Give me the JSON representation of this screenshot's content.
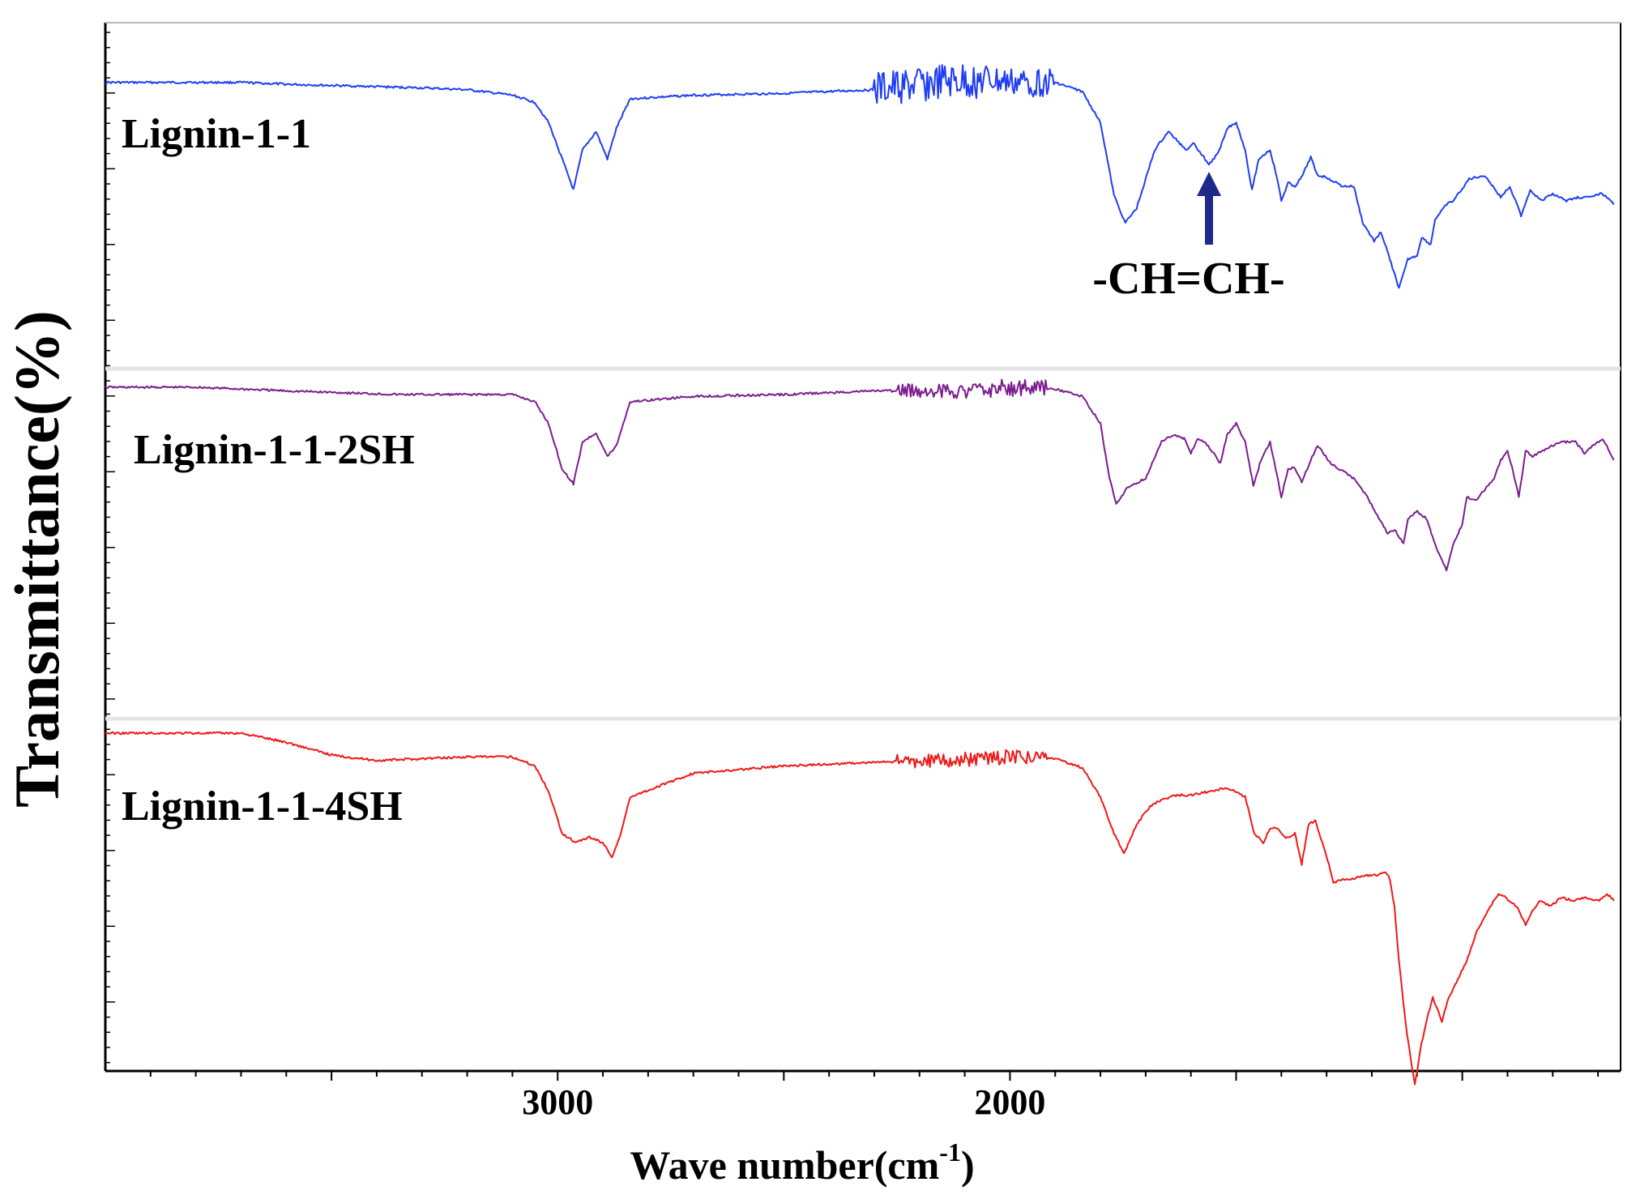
{
  "chart_data": {
    "type": "line",
    "title": "",
    "xlabel": "Wave number(cm",
    "xlabel_sup": "-1",
    "xlabel_close": ")",
    "ylabel": "Transmittance(%)",
    "xlim": [
      4000,
      650
    ],
    "x_ticks": [
      3000,
      2000
    ],
    "x_tick_labels": [
      "3000",
      "2000"
    ],
    "grid": false,
    "legend": "none",
    "annotation": {
      "text": "-CH=CH-",
      "x": 1560,
      "series": 0
    },
    "series": [
      {
        "name": "Lignin-1-1",
        "color": "#1f3df5",
        "points": [
          [
            4000,
            0.03
          ],
          [
            3900,
            0.03
          ],
          [
            3700,
            0.03
          ],
          [
            3600,
            0.04
          ],
          [
            3300,
            0.06
          ],
          [
            3200,
            0.07
          ],
          [
            3100,
            0.1
          ],
          [
            3050,
            0.14
          ],
          [
            3020,
            0.25
          ],
          [
            2990,
            0.45
          ],
          [
            2965,
            0.62
          ],
          [
            2945,
            0.4
          ],
          [
            2915,
            0.3
          ],
          [
            2890,
            0.45
          ],
          [
            2870,
            0.28
          ],
          [
            2840,
            0.12
          ],
          [
            2700,
            0.1
          ],
          [
            2500,
            0.09
          ],
          [
            2300,
            0.07
          ],
          [
            2150,
            0.03
          ],
          [
            2050,
            0.02
          ],
          [
            2000,
            0.03
          ],
          [
            1900,
            0.03
          ],
          [
            1840,
            0.08
          ],
          [
            1800,
            0.25
          ],
          [
            1770,
            0.65
          ],
          [
            1745,
            0.8
          ],
          [
            1720,
            0.72
          ],
          [
            1680,
            0.4
          ],
          [
            1650,
            0.3
          ],
          [
            1630,
            0.35
          ],
          [
            1610,
            0.4
          ],
          [
            1595,
            0.36
          ],
          [
            1560,
            0.48
          ],
          [
            1540,
            0.42
          ],
          [
            1520,
            0.28
          ],
          [
            1500,
            0.25
          ],
          [
            1480,
            0.4
          ],
          [
            1465,
            0.62
          ],
          [
            1450,
            0.45
          ],
          [
            1425,
            0.4
          ],
          [
            1410,
            0.55
          ],
          [
            1400,
            0.68
          ],
          [
            1385,
            0.58
          ],
          [
            1370,
            0.6
          ],
          [
            1355,
            0.55
          ],
          [
            1335,
            0.44
          ],
          [
            1320,
            0.54
          ],
          [
            1300,
            0.55
          ],
          [
            1265,
            0.6
          ],
          [
            1240,
            0.6
          ],
          [
            1220,
            0.8
          ],
          [
            1195,
            0.9
          ],
          [
            1180,
            0.85
          ],
          [
            1160,
            1.0
          ],
          [
            1140,
            1.16
          ],
          [
            1120,
            1.0
          ],
          [
            1100,
            0.98
          ],
          [
            1090,
            0.88
          ],
          [
            1070,
            0.92
          ],
          [
            1060,
            0.78
          ],
          [
            1050,
            0.75
          ],
          [
            1035,
            0.7
          ],
          [
            1020,
            0.68
          ],
          [
            985,
            0.56
          ],
          [
            950,
            0.54
          ],
          [
            915,
            0.66
          ],
          [
            895,
            0.6
          ],
          [
            870,
            0.76
          ],
          [
            850,
            0.62
          ],
          [
            825,
            0.68
          ],
          [
            800,
            0.64
          ],
          [
            770,
            0.68
          ],
          [
            745,
            0.66
          ],
          [
            720,
            0.66
          ],
          [
            690,
            0.64
          ],
          [
            665,
            0.7
          ]
        ],
        "noise": [
          [
            2300,
            2050,
            0.1
          ],
          [
            2050,
            1900,
            0.08
          ]
        ]
      },
      {
        "name": "Lignin-1-1-2SH",
        "color": "#7b1d8e",
        "points": [
          [
            4000,
            0.0
          ],
          [
            3800,
            0.0
          ],
          [
            3600,
            0.02
          ],
          [
            3350,
            0.04
          ],
          [
            3100,
            0.04
          ],
          [
            3050,
            0.08
          ],
          [
            3020,
            0.2
          ],
          [
            2990,
            0.45
          ],
          [
            2965,
            0.53
          ],
          [
            2945,
            0.3
          ],
          [
            2915,
            0.25
          ],
          [
            2890,
            0.38
          ],
          [
            2870,
            0.32
          ],
          [
            2840,
            0.08
          ],
          [
            2700,
            0.05
          ],
          [
            2500,
            0.04
          ],
          [
            2300,
            0.02
          ],
          [
            2100,
            0.02
          ],
          [
            2000,
            0.0
          ],
          [
            1900,
            0.01
          ],
          [
            1840,
            0.05
          ],
          [
            1800,
            0.2
          ],
          [
            1780,
            0.5
          ],
          [
            1765,
            0.64
          ],
          [
            1740,
            0.55
          ],
          [
            1700,
            0.5
          ],
          [
            1665,
            0.3
          ],
          [
            1640,
            0.26
          ],
          [
            1615,
            0.28
          ],
          [
            1600,
            0.36
          ],
          [
            1585,
            0.28
          ],
          [
            1570,
            0.3
          ],
          [
            1550,
            0.36
          ],
          [
            1535,
            0.42
          ],
          [
            1520,
            0.26
          ],
          [
            1500,
            0.2
          ],
          [
            1480,
            0.3
          ],
          [
            1462,
            0.54
          ],
          [
            1445,
            0.4
          ],
          [
            1425,
            0.3
          ],
          [
            1410,
            0.48
          ],
          [
            1400,
            0.6
          ],
          [
            1385,
            0.45
          ],
          [
            1370,
            0.44
          ],
          [
            1355,
            0.52
          ],
          [
            1335,
            0.4
          ],
          [
            1320,
            0.32
          ],
          [
            1290,
            0.42
          ],
          [
            1265,
            0.46
          ],
          [
            1240,
            0.5
          ],
          [
            1210,
            0.6
          ],
          [
            1185,
            0.72
          ],
          [
            1165,
            0.8
          ],
          [
            1150,
            0.78
          ],
          [
            1130,
            0.86
          ],
          [
            1120,
            0.72
          ],
          [
            1100,
            0.68
          ],
          [
            1080,
            0.72
          ],
          [
            1060,
            0.86
          ],
          [
            1045,
            0.95
          ],
          [
            1035,
            1.0
          ],
          [
            1020,
            0.86
          ],
          [
            1000,
            0.75
          ],
          [
            990,
            0.6
          ],
          [
            970,
            0.62
          ],
          [
            950,
            0.56
          ],
          [
            930,
            0.5
          ],
          [
            915,
            0.4
          ],
          [
            900,
            0.35
          ],
          [
            890,
            0.44
          ],
          [
            875,
            0.6
          ],
          [
            860,
            0.35
          ],
          [
            845,
            0.38
          ],
          [
            825,
            0.35
          ],
          [
            800,
            0.32
          ],
          [
            780,
            0.3
          ],
          [
            750,
            0.3
          ],
          [
            730,
            0.36
          ],
          [
            710,
            0.32
          ],
          [
            690,
            0.28
          ],
          [
            665,
            0.4
          ]
        ],
        "noise": [
          [
            2250,
            2050,
            0.04
          ],
          [
            2050,
            1920,
            0.05
          ]
        ]
      },
      {
        "name": "Lignin-1-1-4SH",
        "color": "#f01818",
        "points": [
          [
            4000,
            0.0
          ],
          [
            3800,
            0.0
          ],
          [
            3700,
            0.0
          ],
          [
            3600,
            0.05
          ],
          [
            3500,
            0.12
          ],
          [
            3400,
            0.15
          ],
          [
            3200,
            0.13
          ],
          [
            3100,
            0.13
          ],
          [
            3050,
            0.18
          ],
          [
            3020,
            0.32
          ],
          [
            2990,
            0.55
          ],
          [
            2960,
            0.6
          ],
          [
            2930,
            0.57
          ],
          [
            2900,
            0.6
          ],
          [
            2880,
            0.68
          ],
          [
            2860,
            0.55
          ],
          [
            2840,
            0.35
          ],
          [
            2700,
            0.22
          ],
          [
            2500,
            0.18
          ],
          [
            2300,
            0.16
          ],
          [
            2150,
            0.15
          ],
          [
            2000,
            0.13
          ],
          [
            1900,
            0.14
          ],
          [
            1840,
            0.19
          ],
          [
            1800,
            0.35
          ],
          [
            1770,
            0.55
          ],
          [
            1748,
            0.66
          ],
          [
            1720,
            0.5
          ],
          [
            1690,
            0.4
          ],
          [
            1660,
            0.36
          ],
          [
            1630,
            0.34
          ],
          [
            1600,
            0.34
          ],
          [
            1560,
            0.32
          ],
          [
            1520,
            0.3
          ],
          [
            1500,
            0.32
          ],
          [
            1480,
            0.35
          ],
          [
            1460,
            0.55
          ],
          [
            1440,
            0.6
          ],
          [
            1425,
            0.52
          ],
          [
            1410,
            0.52
          ],
          [
            1390,
            0.58
          ],
          [
            1370,
            0.55
          ],
          [
            1355,
            0.72
          ],
          [
            1340,
            0.5
          ],
          [
            1325,
            0.48
          ],
          [
            1310,
            0.6
          ],
          [
            1295,
            0.72
          ],
          [
            1285,
            0.82
          ],
          [
            1265,
            0.8
          ],
          [
            1240,
            0.8
          ],
          [
            1220,
            0.78
          ],
          [
            1190,
            0.78
          ],
          [
            1170,
            0.76
          ],
          [
            1160,
            0.8
          ],
          [
            1150,
            0.95
          ],
          [
            1140,
            1.25
          ],
          [
            1125,
            1.6
          ],
          [
            1105,
            1.93
          ],
          [
            1090,
            1.7
          ],
          [
            1075,
            1.54
          ],
          [
            1065,
            1.45
          ],
          [
            1045,
            1.58
          ],
          [
            1030,
            1.45
          ],
          [
            1010,
            1.35
          ],
          [
            990,
            1.25
          ],
          [
            970,
            1.1
          ],
          [
            950,
            1.0
          ],
          [
            935,
            0.94
          ],
          [
            920,
            0.88
          ],
          [
            905,
            0.9
          ],
          [
            880,
            0.95
          ],
          [
            860,
            1.05
          ],
          [
            850,
            1.0
          ],
          [
            830,
            0.92
          ],
          [
            805,
            0.95
          ],
          [
            780,
            0.9
          ],
          [
            755,
            0.92
          ],
          [
            730,
            0.9
          ],
          [
            700,
            0.92
          ],
          [
            680,
            0.88
          ],
          [
            665,
            0.92
          ]
        ],
        "noise": [
          [
            2250,
            2050,
            0.04
          ],
          [
            2050,
            1920,
            0.04
          ]
        ]
      }
    ]
  }
}
